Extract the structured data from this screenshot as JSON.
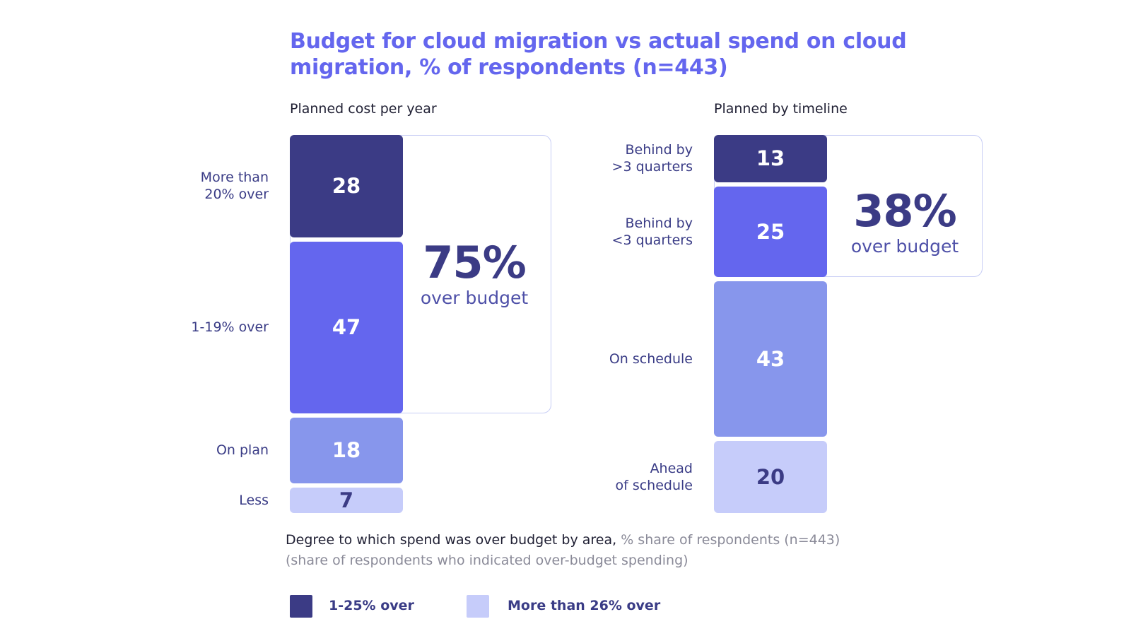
{
  "title": {
    "line1": "Budget for cloud migration vs actual spend on cloud",
    "line2": "migration, % of respondents (n=443)"
  },
  "colors": {
    "dark": "#3b3b85",
    "medium": "#6466ee",
    "light": "#8796ec",
    "lightest": "#c6ccfa",
    "frame": "#c7cdf5"
  },
  "chart_data": [
    {
      "type": "bar",
      "subtype": "stacked-single-column",
      "title": "Planned cost per year",
      "categories": [
        "More than 20% over",
        "1-19% over",
        "On plan",
        "Less"
      ],
      "category_lines": [
        [
          "More than",
          "20% over"
        ],
        [
          "1-19% over"
        ],
        [
          "On plan"
        ],
        [
          "Less"
        ]
      ],
      "values": [
        28,
        47,
        18,
        7
      ],
      "value_labels": [
        "28",
        "47",
        "18",
        "7"
      ],
      "segment_colors": [
        "#3b3b85",
        "#6466ee",
        "#8796ec",
        "#c6ccfa"
      ],
      "label_colors": [
        "#ffffff",
        "#ffffff",
        "#ffffff",
        "#3b3b85"
      ],
      "callout": {
        "value": "75%",
        "label": "over budget",
        "spans_first_n": 2
      }
    },
    {
      "type": "bar",
      "subtype": "stacked-single-column",
      "title": "Planned by timeline",
      "categories": [
        "Behind by >3 quarters",
        "Behind by <3 quarters",
        "On schedule",
        "Ahead of schedule"
      ],
      "category_lines": [
        [
          "Behind by",
          ">3 quarters"
        ],
        [
          "Behind by",
          "<3 quarters"
        ],
        [
          "On schedule"
        ],
        [
          "Ahead",
          "of schedule"
        ]
      ],
      "values": [
        13,
        25,
        43,
        20
      ],
      "value_labels": [
        "13",
        "25",
        "43",
        "20"
      ],
      "segment_colors": [
        "#3b3b85",
        "#6466ee",
        "#8796ec",
        "#c6ccfa"
      ],
      "label_colors": [
        "#ffffff",
        "#ffffff",
        "#ffffff",
        "#3b3b85"
      ],
      "callout": {
        "value": "38%",
        "label": "over budget",
        "spans_first_n": 2
      }
    }
  ],
  "caption": {
    "main": "Degree to which spend was over budget  by area,",
    "muted": " % share of respondents (n=443)",
    "line2": "(share of respondents who indicated over-budget spending)"
  },
  "legend": [
    {
      "label": "1-25% over",
      "color": "#3b3b85"
    },
    {
      "label": "More than 26% over",
      "color": "#c6ccfa"
    }
  ]
}
